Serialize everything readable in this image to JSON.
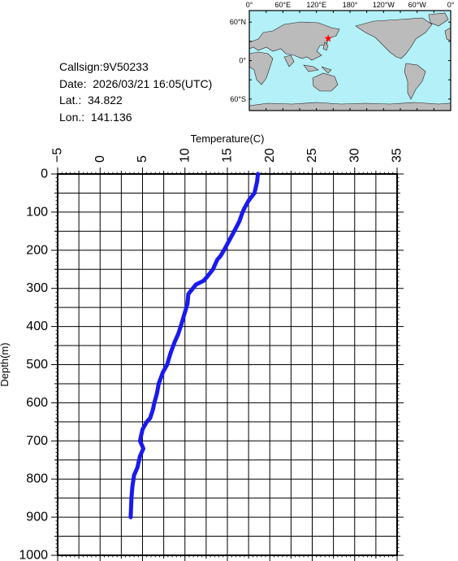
{
  "info": {
    "callsign": "Callsign:9V50233",
    "date": "Date:  2026/03/21 16:05(UTC)",
    "lat": "Lat.:  34.822",
    "lon": "Lon.:  141.136"
  },
  "map": {
    "lon_labels": [
      "0°",
      "60°E",
      "120°E",
      "180°",
      "120°W",
      "60°W",
      "0°"
    ],
    "lat_labels": [
      "60°N",
      "0°",
      "60°S"
    ],
    "ocean_color": "#b3f0f8",
    "land_color": "#bbbbbb",
    "marker_color": "#ff0000",
    "marker_lat": 34.822,
    "marker_lon": 141.136
  },
  "chart_data": {
    "type": "line",
    "xlabel": "Temperature(C)",
    "ylabel": "Depth(m)",
    "xlim": [
      -5,
      35
    ],
    "ylim": [
      0,
      1000
    ],
    "y_inverted": true,
    "x_ticks": [
      -5,
      0,
      5,
      10,
      15,
      20,
      25,
      30,
      35
    ],
    "y_ticks": [
      0,
      100,
      200,
      300,
      400,
      500,
      600,
      700,
      800,
      900,
      1000
    ],
    "grid": true,
    "line_color": "#1a1aee",
    "series": [
      {
        "x": [
          18.6,
          18.5,
          18.2,
          17.5,
          17.0,
          16.8,
          16.4,
          15.8,
          15.2,
          14.6,
          14.2,
          13.8,
          13.3,
          12.6,
          12.2,
          11.3,
          10.4,
          10.3,
          9.9,
          9.5,
          9.2,
          8.8,
          8.3,
          7.9,
          7.4,
          6.9,
          6.7,
          6.4,
          6.2,
          5.9,
          5.5,
          5.0,
          4.8,
          4.7,
          4.9,
          5.1,
          4.7,
          4.4,
          4.0,
          3.8,
          3.7,
          3.6
        ],
        "y": [
          0,
          20,
          50,
          70,
          90,
          100,
          125,
          150,
          175,
          200,
          215,
          225,
          250,
          270,
          280,
          290,
          315,
          340,
          370,
          400,
          420,
          440,
          470,
          500,
          520,
          550,
          575,
          600,
          620,
          640,
          650,
          670,
          690,
          700,
          710,
          720,
          740,
          770,
          790,
          820,
          850,
          900
        ]
      }
    ]
  }
}
